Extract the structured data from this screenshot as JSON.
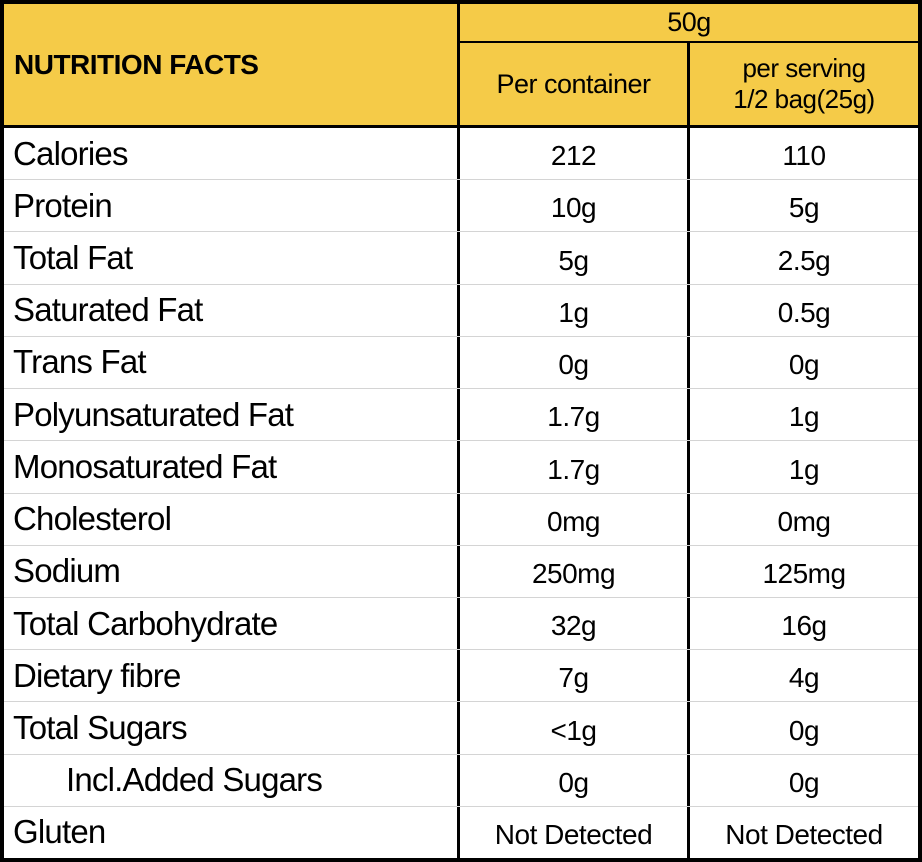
{
  "table": {
    "title": "NUTRITION FACTS",
    "amount_header": "50g",
    "columns": {
      "per_container": "Per container",
      "per_serving_line1": "per serving",
      "per_serving_line2": "1/2 bag(25g)"
    },
    "rows": [
      {
        "label": "Calories",
        "per_container": "212",
        "per_serving": "110"
      },
      {
        "label": "Protein",
        "per_container": "10g",
        "per_serving": "5g"
      },
      {
        "label": "Total Fat",
        "per_container": "5g",
        "per_serving": "2.5g"
      },
      {
        "label": "Saturated Fat",
        "per_container": "1g",
        "per_serving": "0.5g"
      },
      {
        "label": "Trans Fat",
        "per_container": "0g",
        "per_serving": "0g"
      },
      {
        "label": "Polyunsaturated Fat",
        "per_container": "1.7g",
        "per_serving": "1g"
      },
      {
        "label": "Monosaturated Fat",
        "per_container": "1.7g",
        "per_serving": "1g"
      },
      {
        "label": "Cholesterol",
        "per_container": "0mg",
        "per_serving": "0mg"
      },
      {
        "label": "Sodium",
        "per_container": "250mg",
        "per_serving": "125mg"
      },
      {
        "label": "Total Carbohydrate",
        "per_container": "32g",
        "per_serving": "16g"
      },
      {
        "label": "Dietary fibre",
        "per_container": "7g",
        "per_serving": "4g"
      },
      {
        "label": "Total Sugars",
        "per_container": "<1g",
        "per_serving": "0g"
      },
      {
        "label": "Incl.Added Sugars",
        "per_container": "0g",
        "per_serving": "0g"
      },
      {
        "label": "Gluten",
        "per_container": "Not Detected",
        "per_serving": "Not Detected"
      }
    ],
    "colors": {
      "header_bg": "#F5CB48",
      "border": "#000000",
      "row_divider": "#D4D4D4",
      "body_bg": "#FFFFFF"
    }
  }
}
